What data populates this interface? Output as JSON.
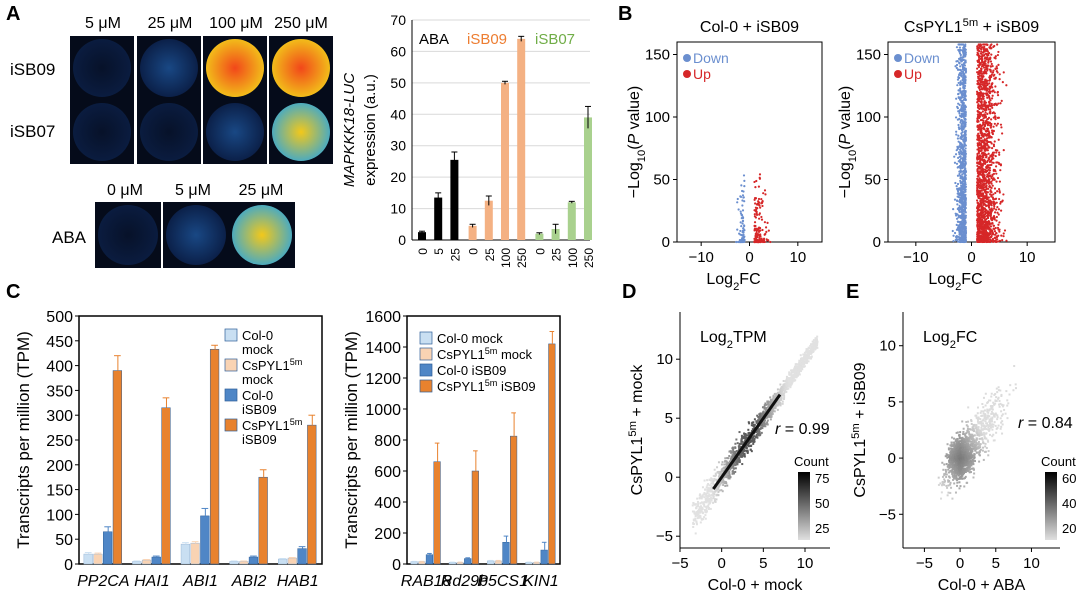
{
  "panel_letters": {
    "a": "A",
    "b": "B",
    "c": "C",
    "d": "D",
    "e": "E"
  },
  "panel_a": {
    "plate_cols": [
      "5 μM",
      "25 μM",
      "100 μM",
      "250 μM"
    ],
    "plate_rows": [
      "iSB09",
      "iSB07"
    ],
    "aba_cols": [
      "0 μM",
      "5 μM",
      "25 μM"
    ],
    "aba_row": "ABA"
  },
  "chart_data": [
    {
      "id": "A-bar",
      "type": "bar",
      "ylabel_italic": "MAPKKK18-LUC",
      "ylabel_rest": "expression (a.u.)",
      "ylim": [
        0,
        70
      ],
      "yticks": [
        0,
        10,
        20,
        30,
        40,
        50,
        60,
        70
      ],
      "grid": true,
      "groups": [
        {
          "name": "ABA",
          "color": "#000000",
          "labelColor": "#000000",
          "categories": [
            "0",
            "5",
            "25"
          ],
          "values": [
            2.5,
            13.5,
            25.5
          ],
          "errors": [
            0.3,
            1.5,
            2.5
          ]
        },
        {
          "name": "iSB09",
          "color": "#f4b183",
          "labelColor": "#ed7d31",
          "categories": [
            "0",
            "25",
            "100",
            "250"
          ],
          "values": [
            4.5,
            12.5,
            50,
            64
          ],
          "errors": [
            0.5,
            1.5,
            0.5,
            0.8
          ]
        },
        {
          "name": "iSB07",
          "color": "#a9d18e",
          "labelColor": "#70ad47",
          "categories": [
            "0",
            "25",
            "100",
            "250"
          ],
          "values": [
            2,
            3.5,
            12,
            39
          ],
          "errors": [
            0.3,
            1.5,
            0.3,
            3.5
          ]
        }
      ]
    },
    {
      "id": "B-left",
      "type": "scatter",
      "title": "Col-0 + iSB09",
      "xlabel_base": "Log",
      "xlabel_sub": "2",
      "xlabel_tail": "FC",
      "ylabel_pre": "−Log",
      "ylabel_sub": "10",
      "ylabel_mid": "(",
      "ylabel_italic": "P",
      "ylabel_tail": " value)",
      "xlim": [
        -15,
        15
      ],
      "ylim": [
        0,
        160
      ],
      "xticks": [
        -10,
        0,
        10
      ],
      "yticks": [
        0,
        50,
        100,
        150
      ],
      "legend": [
        {
          "label": "Down",
          "color": "#6b8fcf"
        },
        {
          "label": "Up",
          "color": "#d62728"
        }
      ],
      "density": "low"
    },
    {
      "id": "B-right",
      "type": "scatter",
      "title_pre": "CsPYL1",
      "title_sup": "5m",
      "title_post": " + iSB09",
      "xlabel_base": "Log",
      "xlabel_sub": "2",
      "xlabel_tail": "FC",
      "ylabel_pre": "−Log",
      "ylabel_sub": "10",
      "ylabel_mid": "(",
      "ylabel_italic": "P",
      "ylabel_tail": " value)",
      "xlim": [
        -15,
        15
      ],
      "ylim": [
        0,
        160
      ],
      "xticks": [
        -10,
        0,
        10
      ],
      "yticks": [
        0,
        50,
        100,
        150
      ],
      "legend": [
        {
          "label": "Down",
          "color": "#6b8fcf"
        },
        {
          "label": "Up",
          "color": "#d62728"
        }
      ],
      "density": "high"
    },
    {
      "id": "C-left",
      "type": "bar",
      "ylabel": "Transcripts per million (TPM)",
      "ylim": [
        0,
        500
      ],
      "yticks": [
        0,
        50,
        100,
        150,
        200,
        250,
        300,
        350,
        400,
        450,
        500
      ],
      "categories": [
        "PP2CA",
        "HAI1",
        "ABI1",
        "ABI2",
        "HAB1"
      ],
      "series": [
        {
          "name": "Col-0 mock",
          "legend_lines": [
            "Col-0",
            "mock"
          ],
          "color": "#c9dff2",
          "values": [
            20,
            5,
            40,
            5,
            10
          ],
          "errors": [
            3,
            1,
            3,
            1,
            1
          ]
        },
        {
          "name": "CsPYL1 5m mock",
          "legend_lines": [
            "CsPYL1",
            "mock"
          ],
          "sup": "5m",
          "color": "#f9d3b3",
          "values": [
            20,
            8,
            42,
            5,
            12
          ],
          "errors": [
            2,
            1,
            3,
            1,
            1
          ]
        },
        {
          "name": "Col-0 iSB09",
          "legend_lines": [
            "Col-0",
            "iSB09"
          ],
          "color": "#4f86c6",
          "values": [
            65,
            14,
            97,
            14,
            31
          ],
          "errors": [
            10,
            2,
            15,
            2,
            4
          ]
        },
        {
          "name": "CsPYL1 5m iSB09",
          "legend_lines": [
            "CsPYL1",
            "iSB09"
          ],
          "sup": "5m",
          "color": "#e8822e",
          "values": [
            390,
            315,
            433,
            175,
            280
          ],
          "errors": [
            30,
            20,
            8,
            15,
            20
          ]
        }
      ]
    },
    {
      "id": "C-right",
      "type": "bar",
      "ylabel": "Transcripts per million (TPM)",
      "ylim": [
        0,
        1600
      ],
      "yticks": [
        0,
        200,
        400,
        600,
        800,
        1000,
        1200,
        1400,
        1600
      ],
      "categories": [
        "RAB18",
        "Rd29b",
        "P5CS1",
        "KIN1"
      ],
      "series": [
        {
          "name": "Col-0 mock",
          "legend_lines": [
            "Col-0 mock"
          ],
          "color": "#c9dff2",
          "values": [
            15,
            10,
            20,
            10
          ],
          "errors": [
            2,
            2,
            3,
            2
          ]
        },
        {
          "name": "CsPYL1 5m mock",
          "legend_lines": [
            "CsPYL1 mock"
          ],
          "sup": "5m",
          "color": "#f9d3b3",
          "values": [
            15,
            10,
            20,
            10
          ],
          "errors": [
            2,
            2,
            3,
            2
          ]
        },
        {
          "name": "Col-0 iSB09",
          "legend_lines": [
            "Col-0 iSB09"
          ],
          "color": "#4f86c6",
          "values": [
            60,
            35,
            140,
            90
          ],
          "errors": [
            8,
            5,
            40,
            50
          ]
        },
        {
          "name": "CsPYL1 5m iSB09",
          "legend_lines": [
            "CsPYL1 iSB09"
          ],
          "sup": "5m",
          "color": "#e8822e",
          "values": [
            660,
            600,
            825,
            1420
          ],
          "errors": [
            120,
            130,
            150,
            80
          ]
        }
      ]
    },
    {
      "id": "D",
      "type": "heatmap",
      "title_base": "Log",
      "title_sub": "2",
      "title_tail": "TPM",
      "xlabel": "Col-0 + mock",
      "ylabel_pre": "CsPYL1",
      "ylabel_sup": "5m",
      "ylabel_post": " + mock",
      "xlim": [
        -5,
        13
      ],
      "ylim": [
        -6,
        14
      ],
      "xticks": [
        -5,
        0,
        5,
        10
      ],
      "yticks": [
        -5,
        0,
        5,
        10
      ],
      "annotation_italic": "r",
      "annotation_rest": " = 0.99",
      "legend_title": "Count",
      "legend_ticks": [
        25,
        50,
        75
      ]
    },
    {
      "id": "E",
      "type": "heatmap",
      "title_base": "Log",
      "title_sub": "2",
      "title_tail": "FC",
      "xlabel": "Col-0 + ABA",
      "ylabel_pre": "CsPYL1",
      "ylabel_sup": "5m",
      "ylabel_post": " + iSB09",
      "xlim": [
        -8,
        14
      ],
      "ylim": [
        -8,
        13
      ],
      "xticks": [
        -5,
        0,
        5,
        10
      ],
      "yticks": [
        -5,
        0,
        5,
        10
      ],
      "annotation_italic": "r",
      "annotation_rest": " = 0.84",
      "legend_title": "Count",
      "legend_ticks": [
        20,
        40,
        60
      ]
    }
  ]
}
